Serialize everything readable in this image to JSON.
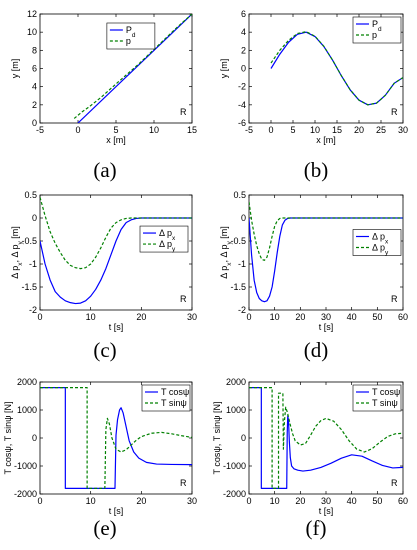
{
  "figure": {
    "captions": [
      "(a)",
      "(b)",
      "(c)",
      "(d)",
      "(e)",
      "(f)"
    ]
  },
  "chart_data": [
    {
      "id": "a",
      "type": "line",
      "xlabel": "x [m]",
      "ylabel": "y [m]",
      "xlim": [
        -5,
        15
      ],
      "ylim": [
        0,
        12
      ],
      "xticks": [
        -5,
        0,
        5,
        10,
        15
      ],
      "yticks": [
        0,
        2,
        4,
        6,
        8,
        10,
        12
      ],
      "grid": false,
      "legend_position": "top-center",
      "corner_label": "R",
      "series": [
        {
          "name": "P_d",
          "color": "#0000ff",
          "dash": "solid",
          "x": [
            0,
            15
          ],
          "y": [
            0,
            12
          ]
        },
        {
          "name": "p",
          "color": "#008000",
          "dash": "dashed",
          "x": [
            -0.5,
            0.5,
            1.5,
            3,
            5,
            8,
            11,
            13,
            15
          ],
          "y": [
            0.5,
            1.2,
            1.8,
            2.8,
            4.3,
            6.5,
            8.9,
            10.5,
            12
          ]
        }
      ]
    },
    {
      "id": "b",
      "type": "line",
      "xlabel": "x [m]",
      "ylabel": "y [m]",
      "xlim": [
        -5,
        30
      ],
      "ylim": [
        -6,
        6
      ],
      "xticks": [
        -5,
        0,
        5,
        10,
        15,
        20,
        25,
        30
      ],
      "yticks": [
        -6,
        -4,
        -2,
        0,
        2,
        4,
        6
      ],
      "grid": false,
      "legend_position": "top-right",
      "corner_label": "R",
      "series": [
        {
          "name": "P_d",
          "color": "#0000ff",
          "dash": "solid",
          "x": [
            0,
            2,
            4,
            6,
            8,
            10,
            12,
            14,
            16,
            18,
            20,
            22,
            24,
            26,
            28,
            30
          ],
          "y": [
            0,
            1.57,
            2.89,
            3.76,
            4.0,
            3.52,
            2.43,
            0.91,
            -0.81,
            -2.36,
            -3.49,
            -4.0,
            -3.81,
            -2.94,
            -1.62,
            -1.0
          ]
        },
        {
          "name": "p",
          "color": "#008000",
          "dash": "dashed",
          "x": [
            0,
            2,
            4,
            6,
            8,
            10,
            12,
            14,
            16,
            18,
            20,
            22,
            24,
            26,
            28,
            30
          ],
          "y": [
            0.6,
            2.0,
            3.1,
            3.85,
            4.05,
            3.55,
            2.45,
            0.92,
            -0.8,
            -2.35,
            -3.48,
            -4.0,
            -3.81,
            -2.94,
            -1.62,
            -1.0
          ]
        }
      ]
    },
    {
      "id": "c",
      "type": "line",
      "xlabel": "t [s]",
      "ylabel": "Δ p_x, Δ p_y [m]",
      "xlim": [
        0,
        30
      ],
      "ylim": [
        -2,
        0.5
      ],
      "xticks": [
        0,
        10,
        20,
        30
      ],
      "yticks": [
        -2,
        -1.5,
        -1,
        -0.5,
        0,
        0.5
      ],
      "grid": false,
      "legend_position": "bottom-right",
      "corner_label": "R",
      "series": [
        {
          "name": "Δ p_x",
          "color": "#0000ff",
          "dash": "solid",
          "x": [
            0,
            1,
            2,
            3,
            4,
            5,
            6,
            7,
            8,
            9,
            10,
            11,
            12,
            13,
            14,
            15,
            16,
            17,
            18,
            19,
            20,
            22,
            25,
            30
          ],
          "y": [
            -0.5,
            -1.0,
            -1.35,
            -1.6,
            -1.72,
            -1.8,
            -1.84,
            -1.86,
            -1.85,
            -1.8,
            -1.7,
            -1.55,
            -1.35,
            -1.1,
            -0.8,
            -0.5,
            -0.25,
            -0.1,
            -0.04,
            -0.01,
            0,
            0,
            0,
            0
          ]
        },
        {
          "name": "Δ p_y",
          "color": "#008000",
          "dash": "dashed",
          "x": [
            0,
            1,
            2,
            3,
            4,
            5,
            6,
            7,
            8,
            9,
            10,
            11,
            12,
            13,
            14,
            15,
            16,
            17,
            18,
            20,
            25,
            30
          ],
          "y": [
            0.45,
            0.05,
            -0.3,
            -0.55,
            -0.75,
            -0.92,
            -1.03,
            -1.08,
            -1.1,
            -1.08,
            -1.0,
            -0.85,
            -0.65,
            -0.42,
            -0.22,
            -0.1,
            -0.04,
            -0.01,
            0,
            0,
            0,
            0
          ]
        }
      ]
    },
    {
      "id": "d",
      "type": "line",
      "xlabel": "t [s]",
      "ylabel": "Δ p_x, Δ p_y [m]",
      "xlim": [
        0,
        60
      ],
      "ylim": [
        -2,
        0.5
      ],
      "xticks": [
        0,
        10,
        20,
        30,
        40,
        50,
        60
      ],
      "yticks": [
        -2,
        -1.5,
        -1,
        -0.5,
        0,
        0.5
      ],
      "grid": false,
      "legend_position": "center-right",
      "corner_label": "R",
      "series": [
        {
          "name": "Δ p_x",
          "color": "#0000ff",
          "dash": "solid",
          "x": [
            0,
            1,
            2,
            3,
            4,
            5,
            6,
            7,
            8,
            9,
            10,
            11,
            12,
            13,
            14,
            15,
            16,
            18,
            20,
            30,
            40,
            50,
            60
          ],
          "y": [
            0,
            -0.8,
            -1.35,
            -1.62,
            -1.75,
            -1.8,
            -1.82,
            -1.8,
            -1.7,
            -1.5,
            -1.15,
            -0.75,
            -0.4,
            -0.15,
            -0.05,
            -0.01,
            0,
            0,
            0,
            0,
            0,
            0,
            0
          ]
        },
        {
          "name": "Δ p_y",
          "color": "#008000",
          "dash": "dashed",
          "x": [
            0,
            1,
            2,
            3,
            4,
            5,
            6,
            7,
            8,
            9,
            10,
            11,
            12,
            13,
            14,
            16,
            20,
            30,
            40,
            50,
            60
          ],
          "y": [
            0.35,
            -0.05,
            -0.35,
            -0.6,
            -0.78,
            -0.9,
            -0.92,
            -0.85,
            -0.65,
            -0.4,
            -0.18,
            -0.06,
            -0.01,
            0,
            0,
            0,
            0,
            0,
            0,
            0,
            0
          ]
        }
      ]
    },
    {
      "id": "e",
      "type": "line",
      "xlabel": "t [s]",
      "ylabel": "T cosψ, T sinψ [N]",
      "xlim": [
        0,
        30
      ],
      "ylim": [
        -2000,
        2000
      ],
      "xticks": [
        0,
        10,
        20,
        30
      ],
      "yticks": [
        -2000,
        -1000,
        0,
        1000,
        2000
      ],
      "grid": false,
      "legend_position": "top-right",
      "corner_label": "R",
      "series": [
        {
          "name": "T cosψ",
          "color": "#0000ff",
          "dash": "solid",
          "x": [
            0,
            5,
            5,
            14.8,
            15.0,
            15.3,
            15.7,
            16.0,
            16.4,
            17.0,
            17.6,
            18.5,
            19.5,
            21,
            23,
            26,
            30
          ],
          "y": [
            1800,
            1800,
            -1800,
            -1800,
            100,
            650,
            1000,
            1080,
            900,
            400,
            -100,
            -500,
            -720,
            -870,
            -930,
            -945,
            -950
          ]
        },
        {
          "name": "T sinψ",
          "color": "#008000",
          "dash": "dashed",
          "x": [
            0,
            9.3,
            9.3,
            12.8,
            13.0,
            13.3,
            13.7,
            14.2,
            15,
            16,
            17,
            18,
            19,
            20,
            22,
            24,
            26,
            28,
            30
          ],
          "y": [
            1800,
            1800,
            -1800,
            -1800,
            300,
            700,
            500,
            0,
            -400,
            -500,
            -420,
            -250,
            -80,
            50,
            170,
            200,
            150,
            80,
            20
          ]
        }
      ]
    },
    {
      "id": "f",
      "type": "line",
      "xlabel": "t [s]",
      "ylabel": "T cosψ, T sinψ [N]",
      "xlim": [
        0,
        60
      ],
      "ylim": [
        -2000,
        2000
      ],
      "xticks": [
        0,
        10,
        20,
        30,
        40,
        50,
        60
      ],
      "yticks": [
        -2000,
        -1000,
        0,
        1000,
        2000
      ],
      "grid": false,
      "legend_position": "top-right",
      "corner_label": "R",
      "series": [
        {
          "name": "T cosψ",
          "color": "#0000ff",
          "dash": "solid",
          "x": [
            0,
            4.8,
            4.8,
            14.7,
            14.9,
            15.1,
            15.4,
            15.7,
            16.1,
            16.6,
            17.5,
            19,
            21,
            24,
            28,
            32,
            36,
            40,
            44,
            48,
            52,
            56,
            60
          ],
          "y": [
            1800,
            1800,
            -1800,
            -1800,
            200,
            800,
            620,
            -100,
            -700,
            -1000,
            -1100,
            -1150,
            -1180,
            -1150,
            -1050,
            -900,
            -720,
            -600,
            -650,
            -820,
            -980,
            -1070,
            -1050
          ]
        },
        {
          "name": "T sinψ",
          "color": "#008000",
          "dash": "dashed",
          "x": [
            0,
            9.0,
            9.0,
            11.5,
            11.5,
            13.2,
            13.4,
            13.8,
            14.3,
            15,
            16,
            17,
            18,
            20,
            22,
            24,
            26,
            28,
            30,
            33,
            36,
            39,
            42,
            45,
            48,
            51,
            54,
            57,
            60
          ],
          "y": [
            1800,
            1800,
            -1800,
            -1800,
            1600,
            1600,
            -400,
            600,
            1100,
            900,
            500,
            150,
            -100,
            -250,
            -200,
            100,
            420,
            620,
            700,
            600,
            300,
            -100,
            -400,
            -500,
            -380,
            -150,
            50,
            150,
            170
          ]
        }
      ]
    }
  ]
}
